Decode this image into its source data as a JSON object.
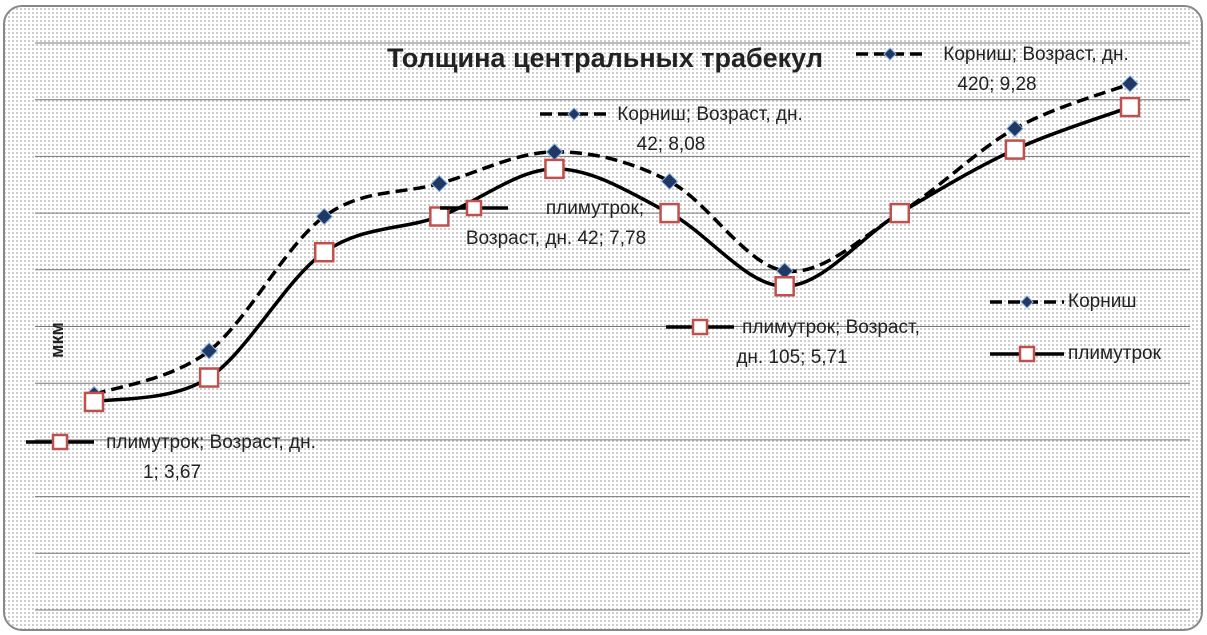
{
  "chart_data": {
    "type": "line",
    "title": "Толщина центральных трабекул",
    "y_label": "мкм",
    "ylim": [
      0,
      10
    ],
    "yticks": [
      0,
      1,
      2,
      3,
      4,
      5,
      6,
      7,
      8,
      9,
      10
    ],
    "grid": true,
    "legend": "right",
    "smooth": true,
    "series": [
      {
        "name": "Корниш",
        "color": "#1f3864",
        "line_color": "#000000",
        "line_style": "dashed",
        "marker": "diamond",
        "values": [
          3.8,
          4.57,
          6.94,
          7.52,
          8.08,
          7.56,
          5.98,
          7.0,
          8.49,
          9.28
        ],
        "value_labels": [
          null,
          null,
          null,
          null,
          "Корниш; Возраст, дн. 42; 8,08",
          null,
          null,
          null,
          null,
          "Корниш; Возраст, дн. 420; 9,28"
        ]
      },
      {
        "name": "плимутрок",
        "color": "#c0504d",
        "line_color": "#000000",
        "line_style": "solid",
        "marker": "square",
        "values": [
          3.67,
          4.1,
          6.31,
          6.94,
          7.78,
          7.0,
          5.71,
          7.0,
          8.12,
          8.87
        ],
        "value_labels": [
          "плимутрок; Возраст, дн. 1; 3,67",
          null,
          null,
          null,
          "плимутрок; Возраст, дн. 42; 7,78",
          null,
          "плимутрок; Возраст, дн. 105; 5,71",
          null,
          null,
          null
        ]
      }
    ]
  }
}
